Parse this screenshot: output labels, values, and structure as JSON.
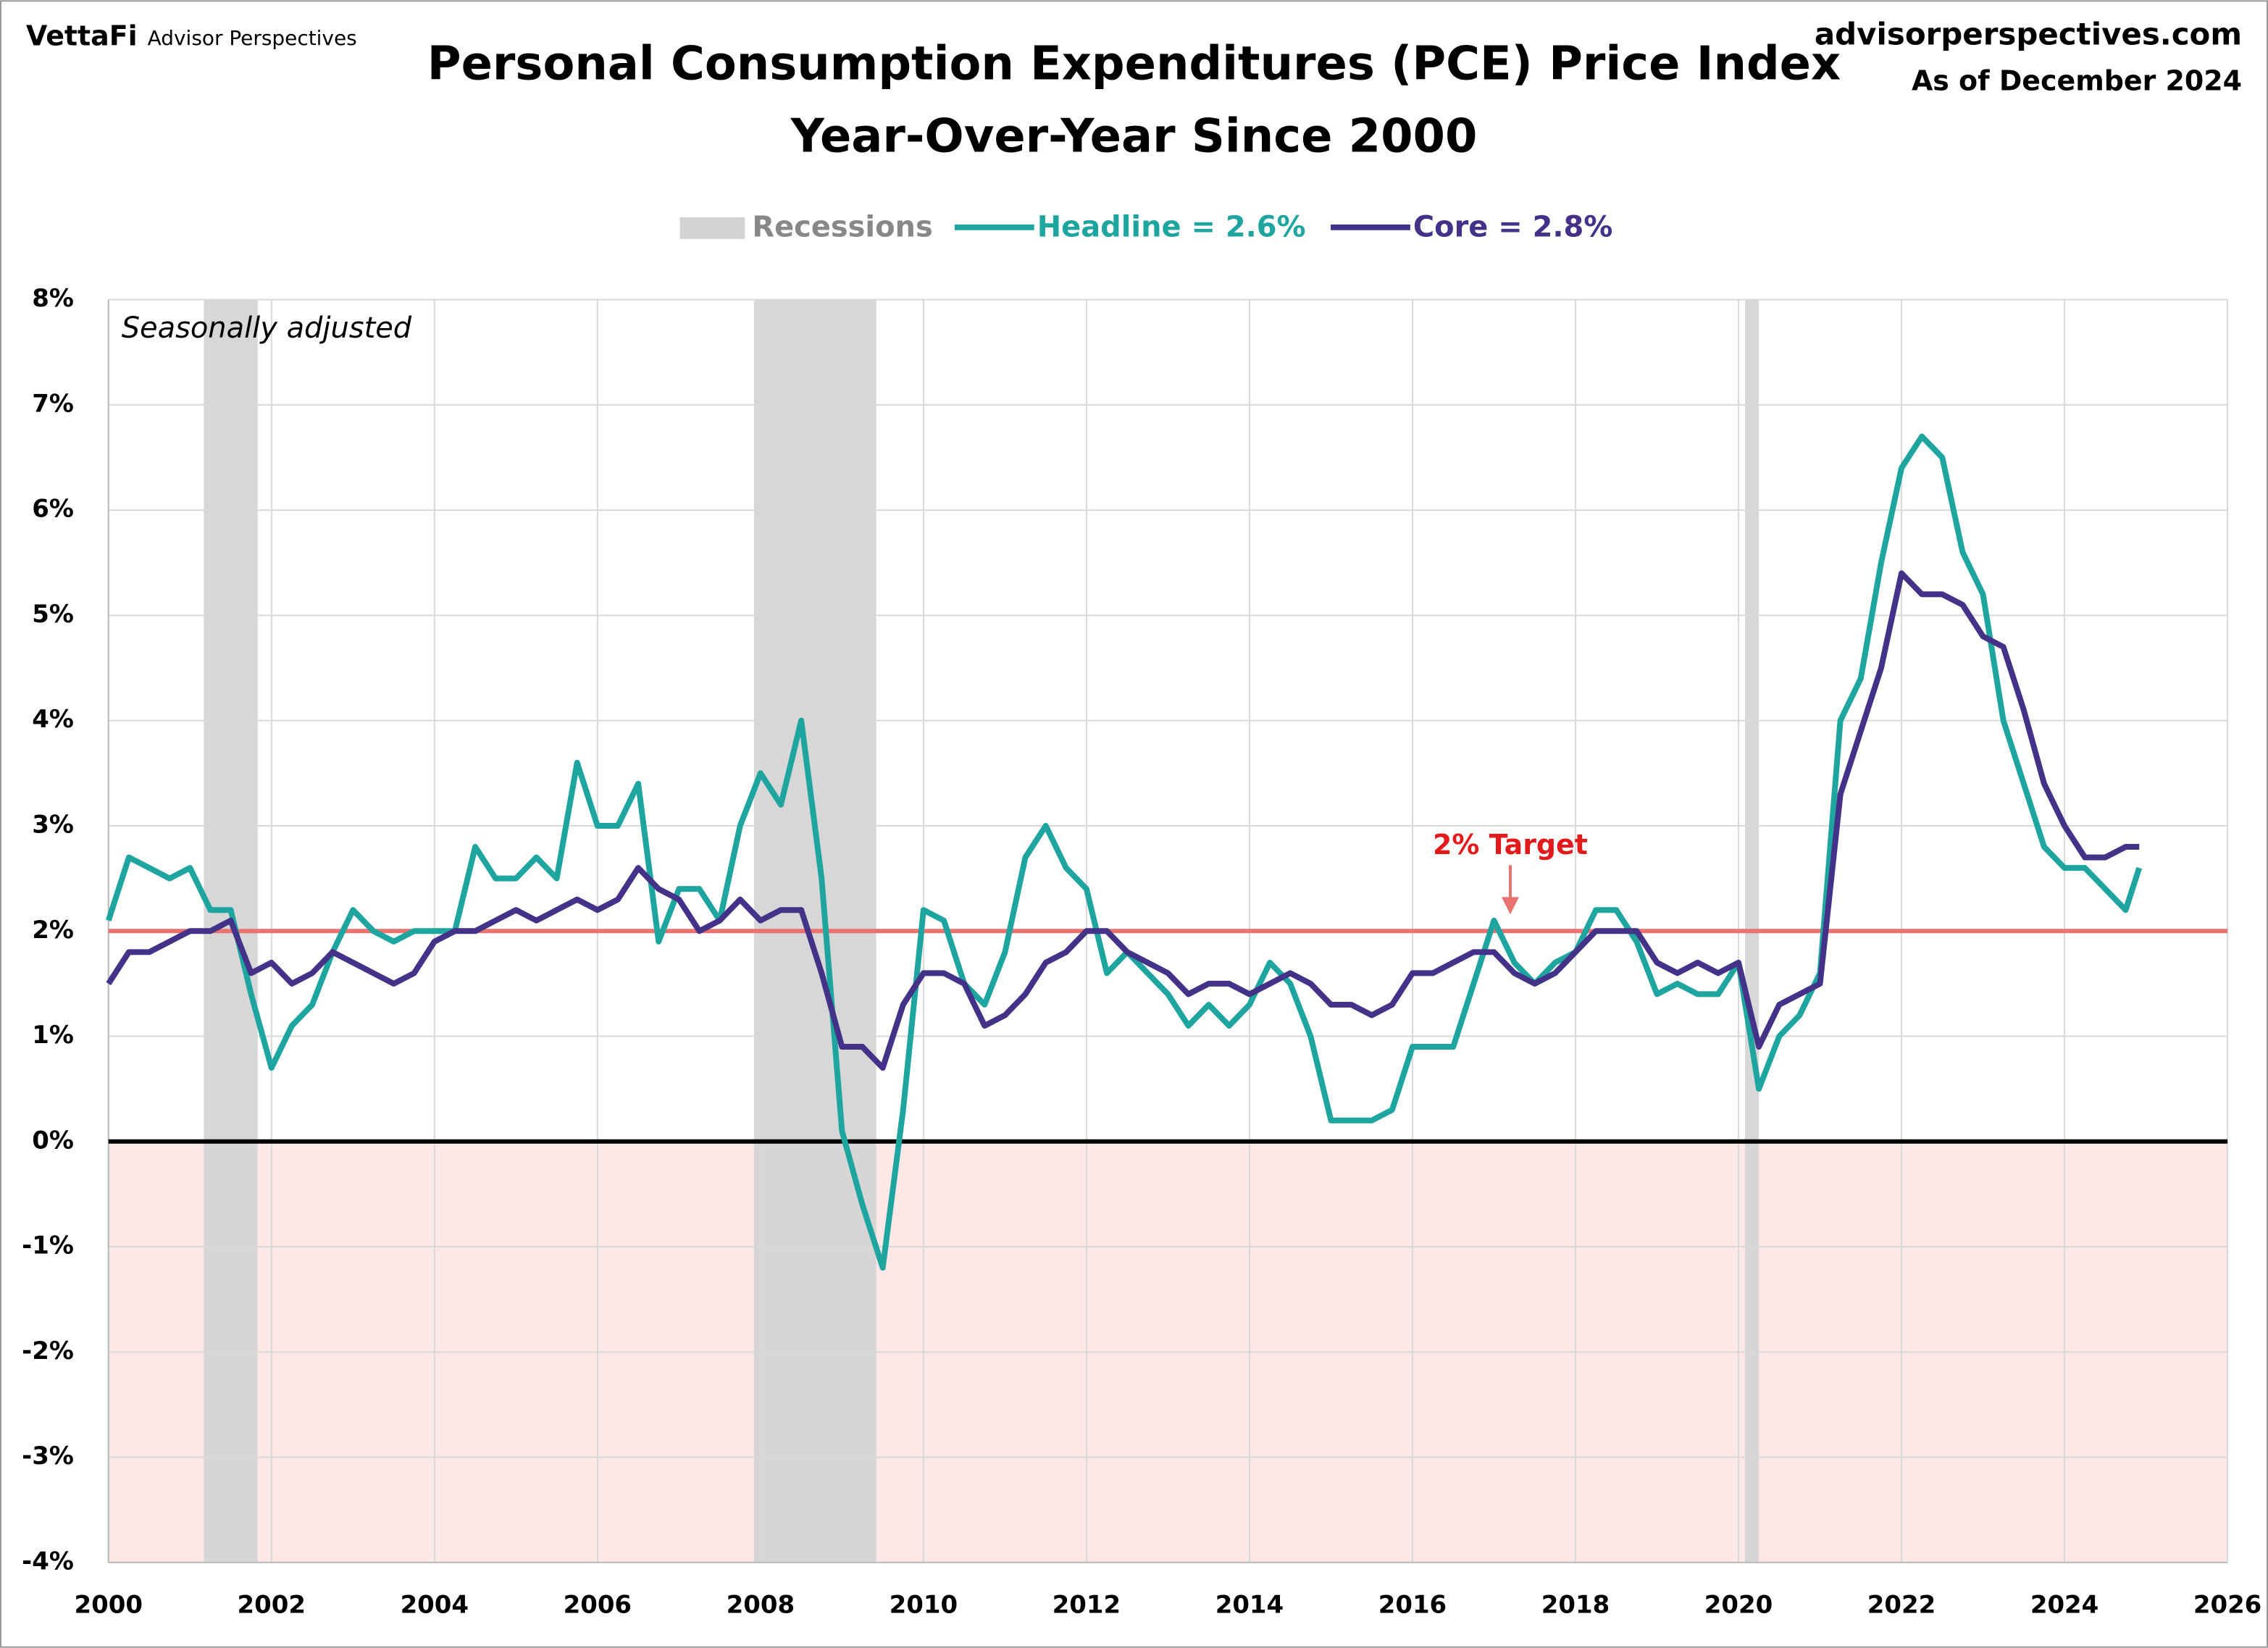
{
  "chart_data": {
    "type": "line",
    "title": "Personal Consumption Expenditures (PCE) Price Index",
    "subtitle": "Year-Over-Year Since 2000",
    "brand": "VettaFi",
    "brand_sub": "Advisor Perspectives",
    "source": "advisorperspectives.com",
    "as_of": "As of December 2024",
    "note": "Seasonally adjusted",
    "recession_label": "Recessions",
    "recession_color": "#d3d3d3",
    "recessions": [
      {
        "start": 2001.17,
        "end": 2001.83
      },
      {
        "start": 2007.92,
        "end": 2009.42
      },
      {
        "start": 2020.08,
        "end": 2020.25
      }
    ],
    "target": 2,
    "target_label": "2% Target",
    "target_color": "#e8736f",
    "x": [
      2000,
      2000.25,
      2000.5,
      2000.75,
      2001,
      2001.25,
      2001.5,
      2001.75,
      2002,
      2002.25,
      2002.5,
      2002.75,
      2003,
      2003.25,
      2003.5,
      2003.75,
      2004,
      2004.25,
      2004.5,
      2004.75,
      2005,
      2005.25,
      2005.5,
      2005.75,
      2006,
      2006.25,
      2006.5,
      2006.75,
      2007,
      2007.25,
      2007.5,
      2007.75,
      2008,
      2008.25,
      2008.5,
      2008.75,
      2009,
      2009.25,
      2009.5,
      2009.75,
      2010,
      2010.25,
      2010.5,
      2010.75,
      2011,
      2011.25,
      2011.5,
      2011.75,
      2012,
      2012.25,
      2012.5,
      2012.75,
      2013,
      2013.25,
      2013.5,
      2013.75,
      2014,
      2014.25,
      2014.5,
      2014.75,
      2015,
      2015.25,
      2015.5,
      2015.75,
      2016,
      2016.25,
      2016.5,
      2016.75,
      2017,
      2017.25,
      2017.5,
      2017.75,
      2018,
      2018.25,
      2018.5,
      2018.75,
      2019,
      2019.25,
      2019.5,
      2019.75,
      2020,
      2020.25,
      2020.5,
      2020.75,
      2021,
      2021.25,
      2021.5,
      2021.75,
      2022,
      2022.25,
      2022.5,
      2022.75,
      2023,
      2023.25,
      2023.5,
      2023.75,
      2024,
      2024.25,
      2024.5,
      2024.75,
      2024.917
    ],
    "series": [
      {
        "name": "Headline = 2.6%",
        "color": "#1fa5a0",
        "values": [
          2.1,
          2.7,
          2.6,
          2.5,
          2.6,
          2.2,
          2.2,
          1.4,
          0.7,
          1.1,
          1.3,
          1.8,
          2.2,
          2.0,
          1.9,
          2.0,
          2.0,
          2.0,
          2.8,
          2.5,
          2.5,
          2.7,
          2.5,
          3.6,
          3.0,
          3.0,
          3.4,
          1.9,
          2.4,
          2.4,
          2.1,
          3.0,
          3.5,
          3.2,
          4.0,
          2.5,
          0.1,
          -0.6,
          -1.2,
          0.3,
          2.2,
          2.1,
          1.5,
          1.3,
          1.8,
          2.7,
          3.0,
          2.6,
          2.4,
          1.6,
          1.8,
          1.6,
          1.4,
          1.1,
          1.3,
          1.1,
          1.3,
          1.7,
          1.5,
          1.0,
          0.2,
          0.2,
          0.2,
          0.3,
          0.9,
          0.9,
          0.9,
          1.5,
          2.1,
          1.7,
          1.5,
          1.7,
          1.8,
          2.2,
          2.2,
          1.9,
          1.4,
          1.5,
          1.4,
          1.4,
          1.7,
          0.5,
          1.0,
          1.2,
          1.6,
          4.0,
          4.4,
          5.5,
          6.4,
          6.7,
          6.5,
          5.6,
          5.2,
          4.0,
          3.4,
          2.8,
          2.6,
          2.6,
          2.4,
          2.2,
          2.6
        ]
      },
      {
        "name": "Core = 2.8%",
        "color": "#433288",
        "values": [
          1.5,
          1.8,
          1.8,
          1.9,
          2.0,
          2.0,
          2.1,
          1.6,
          1.7,
          1.5,
          1.6,
          1.8,
          1.7,
          1.6,
          1.5,
          1.6,
          1.9,
          2.0,
          2.0,
          2.1,
          2.2,
          2.1,
          2.2,
          2.3,
          2.2,
          2.3,
          2.6,
          2.4,
          2.3,
          2.0,
          2.1,
          2.3,
          2.1,
          2.2,
          2.2,
          1.6,
          0.9,
          0.9,
          0.7,
          1.3,
          1.6,
          1.6,
          1.5,
          1.1,
          1.2,
          1.4,
          1.7,
          1.8,
          2.0,
          2.0,
          1.8,
          1.7,
          1.6,
          1.4,
          1.5,
          1.5,
          1.4,
          1.5,
          1.6,
          1.5,
          1.3,
          1.3,
          1.2,
          1.3,
          1.6,
          1.6,
          1.7,
          1.8,
          1.8,
          1.6,
          1.5,
          1.6,
          1.8,
          2.0,
          2.0,
          2.0,
          1.7,
          1.6,
          1.7,
          1.6,
          1.7,
          0.9,
          1.3,
          1.4,
          1.5,
          3.3,
          3.9,
          4.5,
          5.4,
          5.2,
          5.2,
          5.1,
          4.8,
          4.7,
          4.1,
          3.4,
          3.0,
          2.7,
          2.7,
          2.8,
          2.8
        ]
      }
    ],
    "xlim": [
      2000,
      2026
    ],
    "xticks": [
      2000,
      2002,
      2004,
      2006,
      2008,
      2010,
      2012,
      2014,
      2016,
      2018,
      2020,
      2022,
      2024,
      2026
    ],
    "ylim": [
      -4,
      8
    ],
    "yticks": [
      {
        "value": -4,
        "label": "-4%"
      },
      {
        "value": -3,
        "label": "-3%"
      },
      {
        "value": -2,
        "label": "-2%"
      },
      {
        "value": -1,
        "label": "-1%"
      },
      {
        "value": 0,
        "label": "0%"
      },
      {
        "value": 1,
        "label": "1%"
      },
      {
        "value": 2,
        "label": "2%"
      },
      {
        "value": 3,
        "label": "3%"
      },
      {
        "value": 4,
        "label": "4%"
      },
      {
        "value": 5,
        "label": "5%"
      },
      {
        "value": 6,
        "label": "6%"
      },
      {
        "value": 7,
        "label": "7%"
      },
      {
        "value": 8,
        "label": "8%"
      }
    ],
    "grid": true,
    "negative_shade": "#fde8e8"
  }
}
